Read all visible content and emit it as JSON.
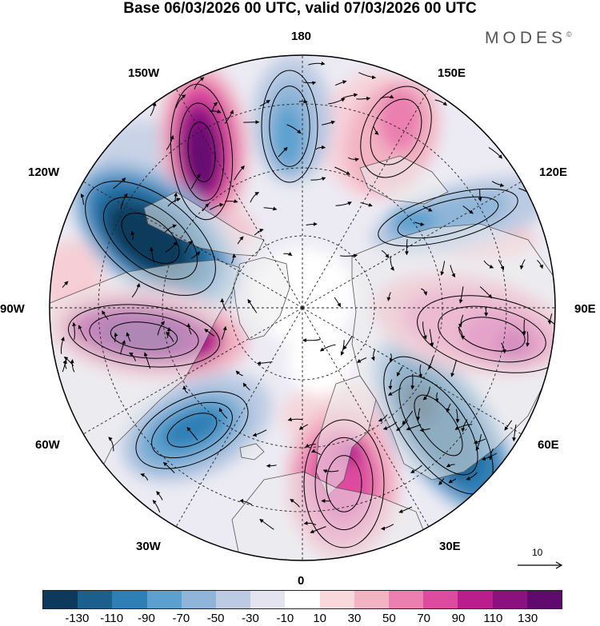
{
  "title": "Base 06/03/2026 00 UTC, valid 07/03/2026 00 UTC",
  "brand": "MODES",
  "brand_mark": "©",
  "longitude_labels": {
    "lon_180": "180",
    "lon_150w": "150W",
    "lon_150e": "150E",
    "lon_120w": "120W",
    "lon_120e": "120E",
    "lon_90w": "90W",
    "lon_90e": "90E",
    "lon_60w": "60W",
    "lon_60e": "60E",
    "lon_30w": "30W",
    "lon_30e": "30E",
    "lon_0": "0"
  },
  "reference_vector": {
    "label": "10"
  },
  "colorbar": {
    "colors": [
      "#0d3a5c",
      "#1b5f8c",
      "#2e7fb5",
      "#5ba0cf",
      "#8fb5d8",
      "#bccbe3",
      "#e4e4f0",
      "#ffffff",
      "#f9d8dc",
      "#f2b3c3",
      "#ea7fb0",
      "#dc4b9e",
      "#b81f8c",
      "#8c1180",
      "#600a70"
    ],
    "tick_labels": [
      "-130",
      "-110",
      "-90",
      "-70",
      "-50",
      "-30",
      "-10",
      "10",
      "30",
      "50",
      "70",
      "90",
      "110",
      "130"
    ]
  }
}
